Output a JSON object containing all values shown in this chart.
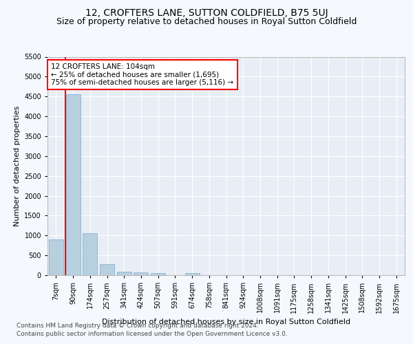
{
  "title": "12, CROFTERS LANE, SUTTON COLDFIELD, B75 5UJ",
  "subtitle": "Size of property relative to detached houses in Royal Sutton Coldfield",
  "xlabel": "Distribution of detached houses by size in Royal Sutton Coldfield",
  "ylabel": "Number of detached properties",
  "footer1": "Contains HM Land Registry data © Crown copyright and database right 2024.",
  "footer2": "Contains public sector information licensed under the Open Government Licence v3.0.",
  "annotation_title": "12 CROFTERS LANE: 104sqm",
  "annotation_line2": "← 25% of detached houses are smaller (1,695)",
  "annotation_line3": "75% of semi-detached houses are larger (5,116) →",
  "bar_labels": [
    "7sqm",
    "90sqm",
    "174sqm",
    "257sqm",
    "341sqm",
    "424sqm",
    "507sqm",
    "591sqm",
    "674sqm",
    "758sqm",
    "841sqm",
    "924sqm",
    "1008sqm",
    "1091sqm",
    "1175sqm",
    "1258sqm",
    "1341sqm",
    "1425sqm",
    "1508sqm",
    "1592sqm",
    "1675sqm"
  ],
  "bar_values": [
    900,
    4550,
    1060,
    270,
    85,
    65,
    55,
    0,
    60,
    0,
    0,
    0,
    0,
    0,
    0,
    0,
    0,
    0,
    0,
    0,
    0
  ],
  "bar_color": "#b8cfe0",
  "bar_edgecolor": "#7aaac8",
  "red_line_x": 0.57,
  "ylim": [
    0,
    5500
  ],
  "yticks": [
    0,
    500,
    1000,
    1500,
    2000,
    2500,
    3000,
    3500,
    4000,
    4500,
    5000,
    5500
  ],
  "background_color": "#f5f8fc",
  "plot_bg_color": "#e8eef5",
  "grid_color": "#ffffff",
  "title_fontsize": 10,
  "subtitle_fontsize": 9,
  "axis_label_fontsize": 8,
  "tick_fontsize": 7,
  "footer_fontsize": 6.5,
  "annot_fontsize": 7.5
}
